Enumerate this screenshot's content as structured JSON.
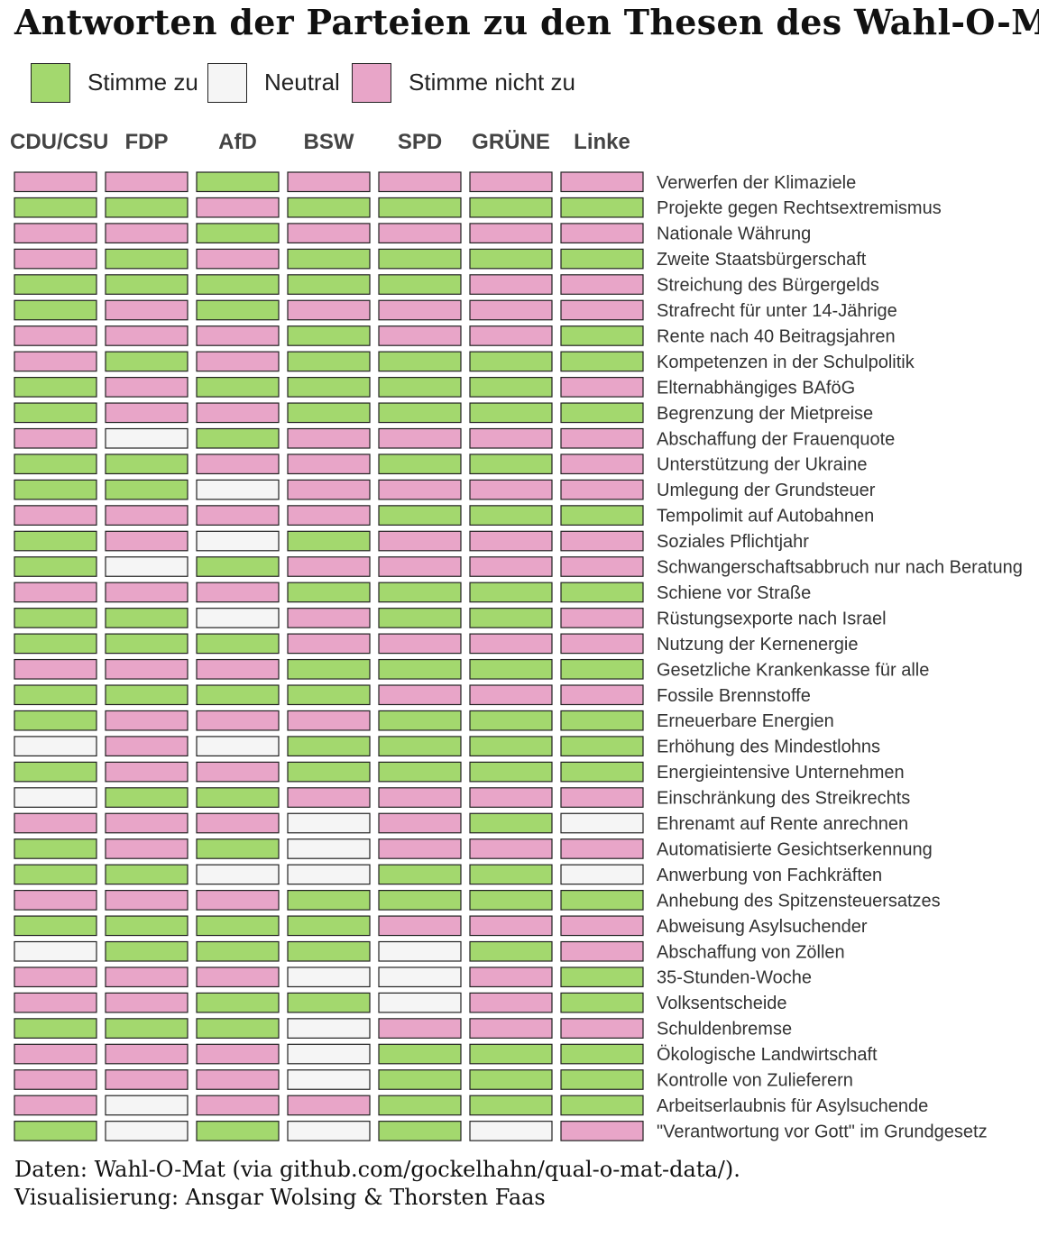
{
  "colors": {
    "agree": "#a3d86e",
    "neutral": "#f5f5f5",
    "disagree": "#e8a5c8",
    "border": "#222222"
  },
  "legend": {
    "agree": "Stimme zu",
    "neutral": "Neutral",
    "disagree": "Stimme nicht zu"
  },
  "chart_data": {
    "type": "heatmap",
    "title": "Antworten der Parteien zu den Thesen des Wahl-O-Mat",
    "x": [
      "CDU/CSU",
      "FDP",
      "AfD",
      "BSW",
      "SPD",
      "GRÜNE",
      "Linke"
    ],
    "y": [
      "Verwerfen der Klimaziele",
      "Projekte gegen Rechtsextremismus",
      "Nationale Währung",
      "Zweite Staatsbürgerschaft",
      "Streichung des Bürgergelds",
      "Strafrecht für unter 14-Jährige",
      "Rente nach 40 Beitragsjahren",
      "Kompetenzen in der Schulpolitik",
      "Elternabhängiges BAföG",
      "Begrenzung der Mietpreise",
      "Abschaffung der Frauenquote",
      "Unterstützung der Ukraine",
      "Umlegung der Grundsteuer",
      "Tempolimit auf Autobahnen",
      "Soziales Pflichtjahr",
      "Schwangerschaftsabbruch nur nach Beratung",
      "Schiene vor Straße",
      "Rüstungsexporte nach Israel",
      "Nutzung der Kernenergie",
      "Gesetzliche Krankenkasse für alle",
      "Fossile Brennstoffe",
      "Erneuerbare Energien",
      "Erhöhung des Mindestlohns",
      "Energieintensive Unternehmen",
      "Einschränkung des Streikrechts",
      "Ehrenamt auf Rente anrechnen",
      "Automatisierte Gesichtserkennung",
      "Anwerbung von Fachkräften",
      "Anhebung des Spitzensteuersatzes",
      "Abweisung Asylsuchender",
      "Abschaffung von Zöllen",
      "35-Stunden-Woche",
      "Volksentscheide",
      "Schuldenbremse",
      "Ökologische Landwirtschaft",
      "Kontrolle von Zulieferern",
      "Arbeitserlaubnis für Asylsuchende",
      "\"Verantwortung vor Gott\" im Grundgesetz"
    ],
    "values": [
      [
        "D",
        "D",
        "A",
        "D",
        "D",
        "D",
        "D"
      ],
      [
        "A",
        "A",
        "D",
        "A",
        "A",
        "A",
        "A"
      ],
      [
        "D",
        "D",
        "A",
        "D",
        "D",
        "D",
        "D"
      ],
      [
        "D",
        "A",
        "D",
        "A",
        "A",
        "A",
        "A"
      ],
      [
        "A",
        "A",
        "A",
        "A",
        "A",
        "D",
        "D"
      ],
      [
        "A",
        "D",
        "A",
        "D",
        "D",
        "D",
        "D"
      ],
      [
        "D",
        "D",
        "D",
        "A",
        "D",
        "D",
        "A"
      ],
      [
        "D",
        "A",
        "D",
        "A",
        "A",
        "A",
        "A"
      ],
      [
        "A",
        "D",
        "A",
        "A",
        "A",
        "A",
        "D"
      ],
      [
        "A",
        "D",
        "D",
        "A",
        "A",
        "A",
        "A"
      ],
      [
        "D",
        "N",
        "A",
        "D",
        "D",
        "D",
        "D"
      ],
      [
        "A",
        "A",
        "D",
        "D",
        "A",
        "A",
        "D"
      ],
      [
        "A",
        "A",
        "N",
        "D",
        "D",
        "D",
        "D"
      ],
      [
        "D",
        "D",
        "D",
        "D",
        "A",
        "A",
        "A"
      ],
      [
        "A",
        "D",
        "N",
        "A",
        "D",
        "D",
        "D"
      ],
      [
        "A",
        "N",
        "A",
        "D",
        "D",
        "D",
        "D"
      ],
      [
        "D",
        "D",
        "D",
        "A",
        "A",
        "A",
        "A"
      ],
      [
        "A",
        "A",
        "N",
        "D",
        "A",
        "A",
        "D"
      ],
      [
        "A",
        "A",
        "A",
        "D",
        "D",
        "D",
        "D"
      ],
      [
        "D",
        "D",
        "D",
        "A",
        "A",
        "A",
        "A"
      ],
      [
        "A",
        "A",
        "A",
        "A",
        "D",
        "D",
        "D"
      ],
      [
        "A",
        "D",
        "D",
        "D",
        "A",
        "A",
        "A"
      ],
      [
        "N",
        "D",
        "N",
        "A",
        "A",
        "A",
        "A"
      ],
      [
        "A",
        "D",
        "D",
        "A",
        "A",
        "A",
        "A"
      ],
      [
        "N",
        "A",
        "A",
        "D",
        "D",
        "D",
        "D"
      ],
      [
        "D",
        "D",
        "D",
        "N",
        "D",
        "A",
        "N"
      ],
      [
        "A",
        "D",
        "A",
        "N",
        "D",
        "D",
        "D"
      ],
      [
        "A",
        "A",
        "N",
        "N",
        "A",
        "A",
        "N"
      ],
      [
        "D",
        "D",
        "D",
        "A",
        "A",
        "A",
        "A"
      ],
      [
        "A",
        "A",
        "A",
        "A",
        "D",
        "D",
        "D"
      ],
      [
        "N",
        "A",
        "A",
        "A",
        "N",
        "A",
        "D"
      ],
      [
        "D",
        "D",
        "D",
        "N",
        "N",
        "D",
        "A"
      ],
      [
        "D",
        "D",
        "A",
        "A",
        "N",
        "D",
        "A"
      ],
      [
        "A",
        "A",
        "A",
        "N",
        "D",
        "D",
        "D"
      ],
      [
        "D",
        "D",
        "D",
        "N",
        "A",
        "A",
        "A"
      ],
      [
        "D",
        "D",
        "D",
        "N",
        "A",
        "A",
        "A"
      ],
      [
        "D",
        "N",
        "D",
        "D",
        "A",
        "A",
        "A"
      ],
      [
        "A",
        "N",
        "A",
        "N",
        "A",
        "N",
        "D"
      ]
    ],
    "value_legend": {
      "A": "Stimme zu",
      "N": "Neutral",
      "D": "Stimme nicht zu"
    },
    "legend_position": "top-left",
    "grid": false
  },
  "caption": {
    "line1": "Daten: Wahl-O-Mat (via github.com/gockelhahn/qual-o-mat-data/).",
    "line2": "Visualisierung: Ansgar Wolsing & Thorsten Faas"
  }
}
